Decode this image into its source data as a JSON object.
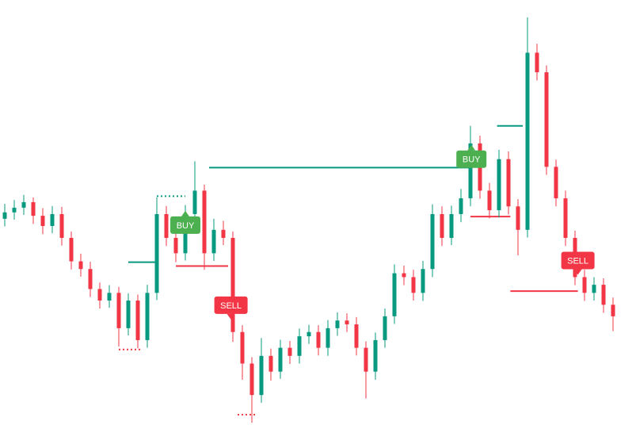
{
  "chart_data": {
    "type": "candlestick",
    "bull_color": "#089981",
    "bear_color": "#f23645",
    "ylim": [
      0,
      100
    ],
    "open": [
      49.0,
      50.5,
      51.6,
      52.9,
      49.7,
      47.3,
      50.1,
      44.5,
      39.0,
      37.2,
      32.5,
      29.8,
      31.6,
      23.3,
      29.8,
      20.5,
      31.6,
      50.1,
      44.5,
      40.9,
      50.1,
      55.6,
      40.9,
      46.4,
      44.5,
      22.4,
      15.0,
      7.6,
      16.8,
      13.1,
      18.7,
      16.8,
      21.4,
      22.4,
      18.7,
      23.3,
      25.1,
      24.2,
      18.7,
      13.1,
      20.5,
      26.1,
      36.2,
      35.3,
      31.6,
      37.2,
      50.1,
      44.5,
      50.1,
      53.8,
      66.7,
      55.6,
      51.0,
      63.0,
      51.9,
      46.4,
      88.0,
      83.4,
      61.2,
      53.8,
      44.5,
      35.3,
      31.6,
      33.5,
      28.8
    ],
    "high": [
      52.5,
      53.4,
      54.6,
      54.0,
      51.5,
      52.0,
      51.8,
      46.0,
      40.8,
      38.9,
      34.0,
      33.4,
      33.0,
      31.5,
      31.2,
      33.5,
      54.0,
      52.0,
      46.3,
      52.2,
      62.5,
      57.0,
      49.0,
      48.5,
      46.0,
      24.0,
      16.5,
      21.0,
      18.5,
      20.6,
      20.3,
      23.2,
      24.1,
      24.0,
      25.2,
      27.0,
      26.8,
      25.9,
      20.2,
      22.3,
      27.9,
      38.3,
      38.0,
      37.0,
      39.1,
      52.4,
      51.9,
      52.1,
      56.0,
      70.8,
      68.5,
      57.4,
      65.2,
      64.8,
      53.6,
      96.3,
      90.1,
      85.0,
      62.9,
      55.6,
      46.2,
      37.0,
      35.3,
      35.0,
      30.5
    ],
    "low": [
      47.2,
      48.8,
      49.9,
      47.8,
      45.4,
      45.6,
      42.7,
      37.1,
      35.4,
      30.6,
      27.9,
      28.1,
      19.0,
      21.6,
      18.6,
      18.7,
      29.9,
      42.6,
      38.8,
      39.2,
      48.3,
      37.0,
      39.1,
      42.8,
      20.1,
      11.2,
      1.1,
      5.8,
      11.0,
      11.4,
      14.9,
      15.0,
      19.6,
      16.9,
      16.8,
      21.5,
      22.4,
      16.9,
      6.8,
      11.2,
      18.7,
      24.3,
      33.4,
      29.8,
      29.7,
      35.3,
      42.6,
      42.8,
      48.2,
      51.9,
      53.7,
      49.1,
      49.3,
      50.0,
      40.4,
      44.6,
      81.5,
      59.3,
      51.9,
      42.6,
      33.4,
      29.7,
      29.8,
      26.9,
      22.6
    ],
    "close": [
      50.5,
      51.6,
      52.9,
      49.7,
      47.3,
      50.1,
      44.5,
      39.0,
      37.2,
      32.5,
      29.8,
      31.6,
      23.3,
      29.8,
      20.5,
      31.6,
      50.1,
      44.5,
      40.9,
      50.1,
      55.6,
      40.9,
      46.4,
      44.5,
      22.4,
      15.0,
      7.6,
      16.8,
      13.1,
      18.7,
      16.8,
      21.4,
      22.4,
      18.7,
      23.3,
      25.1,
      24.2,
      18.7,
      13.1,
      20.5,
      26.1,
      36.2,
      35.3,
      31.6,
      37.2,
      50.1,
      44.5,
      50.1,
      53.8,
      66.7,
      55.6,
      51.0,
      63.0,
      51.9,
      46.4,
      88.0,
      83.4,
      61.2,
      53.8,
      44.5,
      35.3,
      31.6,
      33.5,
      28.8,
      26.1
    ],
    "levels": [
      {
        "color": "#089981",
        "dashed": true,
        "from": 16,
        "to": 19,
        "value": 54.3
      },
      {
        "color": "#089981",
        "dashed": false,
        "from": 13,
        "to": 16,
        "value": 38.8
      },
      {
        "color": "#f23645",
        "dashed": true,
        "from": 12,
        "to": 14.5,
        "value": 18.3
      },
      {
        "color": "#f23645",
        "dashed": false,
        "from": 18,
        "to": 23.5,
        "value": 37.9
      },
      {
        "color": "#089981",
        "dashed": false,
        "from": 21.5,
        "to": 49,
        "value": 61.0
      },
      {
        "color": "#f23645",
        "dashed": true,
        "from": 24.5,
        "to": 26.5,
        "value": 3.0
      },
      {
        "color": "#f23645",
        "dashed": false,
        "from": 49,
        "to": 53.2,
        "value": 49.5
      },
      {
        "color": "#089981",
        "dashed": false,
        "from": 51.8,
        "to": 54.5,
        "value": 70.8
      },
      {
        "color": "#f23645",
        "dashed": false,
        "from": 53.2,
        "to": 60.3,
        "value": 32.0
      }
    ],
    "annotations": [
      {
        "label": "BUY",
        "kind": "buy",
        "color": "#4caf50",
        "index": 19,
        "value": 47.5
      },
      {
        "label": "SELL",
        "kind": "sell",
        "color": "#f23645",
        "index": 23.8,
        "value": 28.7
      },
      {
        "label": "BUY",
        "kind": "buy",
        "color": "#4caf50",
        "index": 49.1,
        "value": 63.0
      },
      {
        "label": "SELL",
        "kind": "sell",
        "color": "#f23645",
        "index": 60.3,
        "value": 39.2
      }
    ]
  }
}
